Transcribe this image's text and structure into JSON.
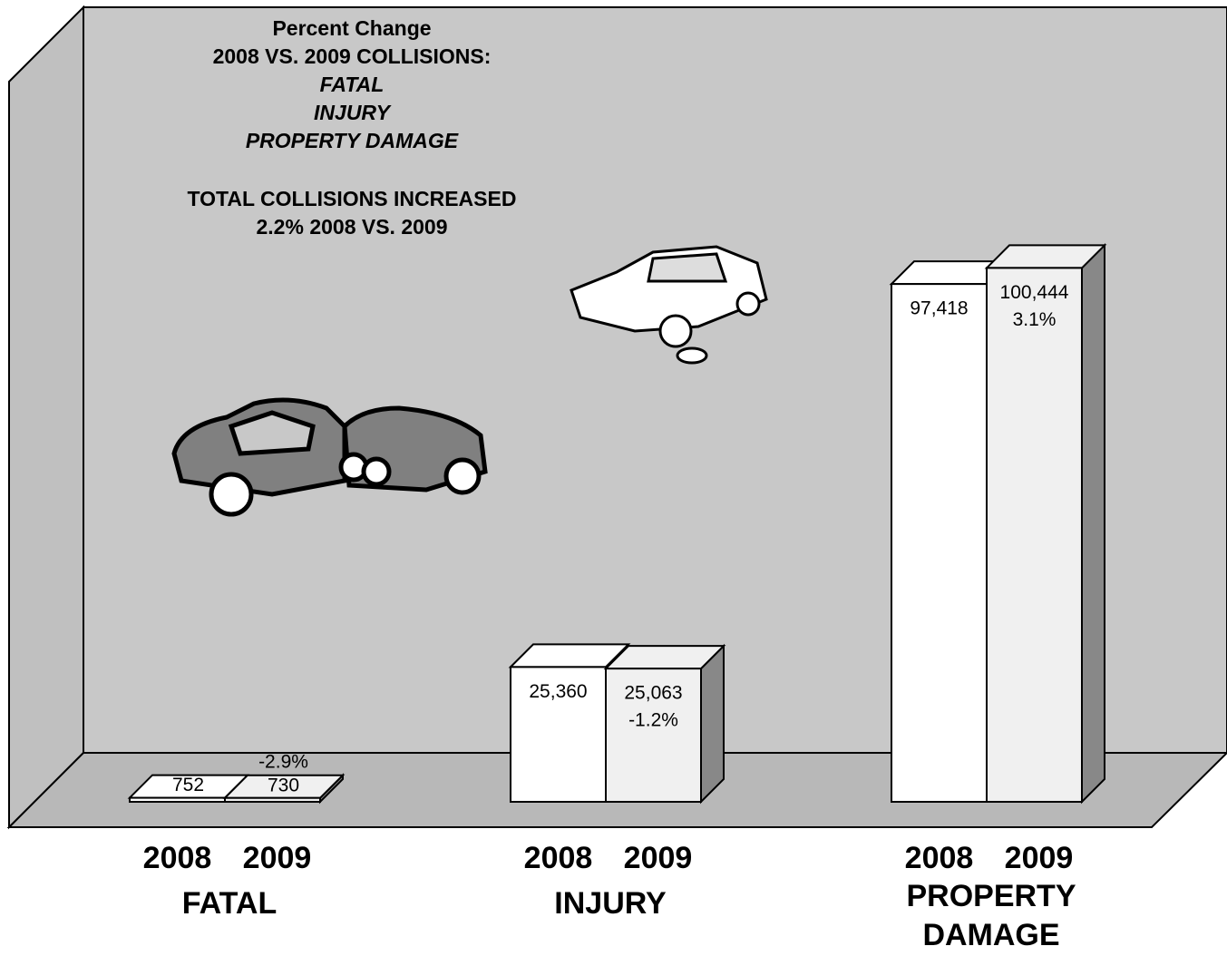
{
  "chart_data": {
    "type": "bar3d",
    "title_lines": [
      "Percent Change",
      "2008 VS. 2009 COLLISIONS:"
    ],
    "title_italic_lines": [
      "FATAL",
      "INJURY",
      "PROPERTY DAMAGE"
    ],
    "subtitle_lines": [
      "TOTAL COLLISIONS INCREASED",
      "2.2% 2008 VS. 2009"
    ],
    "categories": [
      "FATAL",
      "INJURY",
      "PROPERTY DAMAGE"
    ],
    "series": [
      {
        "name": "2008",
        "color": "#ffffff",
        "values": [
          752,
          25360,
          97418
        ],
        "value_labels": [
          "752",
          "25,360",
          "97,418"
        ]
      },
      {
        "name": "2009",
        "color": "#f0f0f0",
        "values": [
          730,
          25063,
          100444
        ],
        "value_labels": [
          "730",
          "25,063",
          "100,444"
        ]
      }
    ],
    "change_labels": [
      "-2.9%",
      "-1.2%",
      "3.1%"
    ],
    "ylim": [
      0,
      150000
    ]
  }
}
